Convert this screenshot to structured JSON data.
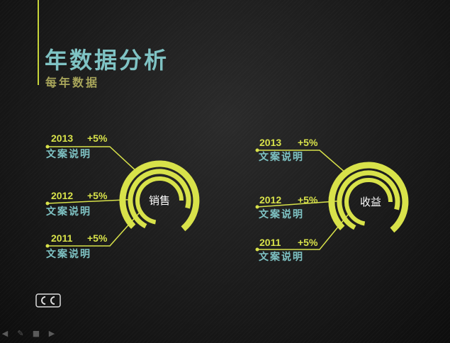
{
  "header": {
    "title": "年数据分析",
    "subtitle": "每年数据"
  },
  "chart_data": [
    {
      "type": "radial",
      "center_label": "销售",
      "items": [
        {
          "year": "2013",
          "change": "+5%",
          "desc": "文案说明"
        },
        {
          "year": "2012",
          "change": "+5%",
          "desc": "文案说明"
        },
        {
          "year": "2011",
          "change": "+5%",
          "desc": "文案说明"
        }
      ]
    },
    {
      "type": "radial",
      "center_label": "收益",
      "items": [
        {
          "year": "2013",
          "change": "+5%",
          "desc": "文案说明"
        },
        {
          "year": "2012",
          "change": "+5%",
          "desc": "文案说明"
        },
        {
          "year": "2011",
          "change": "+5%",
          "desc": "文案说明"
        }
      ]
    }
  ],
  "colors": {
    "accent": "#d8e24a",
    "text": "#7fc3c4",
    "subtitle": "#a8a55a"
  },
  "icons": [
    "cc-logo-icon",
    "back-icon",
    "pen-icon",
    "menu-icon",
    "forward-icon"
  ]
}
